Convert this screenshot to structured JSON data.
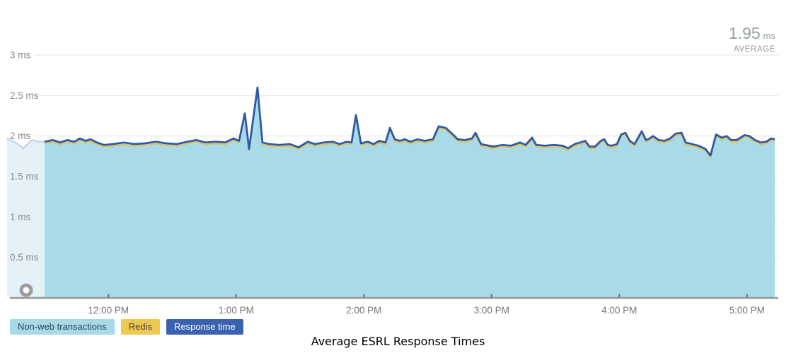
{
  "title": "Average ESRL Response Times",
  "summary": {
    "average_value": "1.95",
    "average_unit": "ms",
    "average_caption": "AVERAGE"
  },
  "legend": [
    {
      "label": "Non-web transactions",
      "bg": "#a7d9e6",
      "fg": "#31454f"
    },
    {
      "label": "Redis",
      "bg": "#edc951",
      "fg": "#4c4637"
    },
    {
      "label": "Response time",
      "bg": "#3b62b0",
      "fg": "#ffffff"
    }
  ],
  "chart_data": {
    "type": "area",
    "title": "Average ESRL Response Times",
    "xlabel": "",
    "ylabel": "",
    "unit": "ms",
    "average_ms": 1.95,
    "ylim": [
      0,
      3
    ],
    "x_range_hours": [
      11.206,
      17.25
    ],
    "grid": true,
    "legend_position": "bottom-left",
    "y_ticks": [
      {
        "v": 0.5,
        "label": "0.5 ms"
      },
      {
        "v": 1.0,
        "label": "1 ms"
      },
      {
        "v": 1.5,
        "label": "1.5 ms"
      },
      {
        "v": 2.0,
        "label": "2 ms"
      },
      {
        "v": 2.5,
        "label": "2.5 ms"
      },
      {
        "v": 3.0,
        "label": "3 ms"
      }
    ],
    "x_ticks": [
      {
        "hour": 12,
        "label": "12:00 PM"
      },
      {
        "hour": 13,
        "label": "1:00 PM"
      },
      {
        "hour": 14,
        "label": "2:00 PM"
      },
      {
        "hour": 15,
        "label": "3:00 PM"
      },
      {
        "hour": 16,
        "label": "4:00 PM"
      },
      {
        "hour": 17,
        "label": "5:00 PM"
      }
    ],
    "series": [
      {
        "name": "Non-web transactions",
        "type": "area",
        "color": "#a9dae8",
        "offset_ms": -0.02
      },
      {
        "name": "Redis",
        "type": "line",
        "color": "#e3bf4e",
        "offset_ms": -0.022
      },
      {
        "name": "Response time",
        "type": "line",
        "color": "#2a58ab",
        "offset_ms": 0
      }
    ],
    "previous_window": {
      "fill": "#e4f1f7",
      "stroke": "#c7d4e4",
      "samples": [
        [
          11.206,
          1.97
        ],
        [
          11.27,
          1.92
        ],
        [
          11.334,
          1.85
        ],
        [
          11.4,
          1.95
        ],
        [
          11.456,
          1.93
        ],
        [
          11.5,
          1.93
        ]
      ]
    },
    "samples_hour_value": [
      [
        11.5,
        1.93
      ],
      [
        11.566,
        1.95
      ],
      [
        11.622,
        1.92
      ],
      [
        11.677,
        1.95
      ],
      [
        11.733,
        1.93
      ],
      [
        11.777,
        1.97
      ],
      [
        11.821,
        1.94
      ],
      [
        11.86,
        1.96
      ],
      [
        11.91,
        1.92
      ],
      [
        11.965,
        1.89
      ],
      [
        12.037,
        1.9
      ],
      [
        12.12,
        1.92
      ],
      [
        12.204,
        1.9
      ],
      [
        12.287,
        1.91
      ],
      [
        12.37,
        1.93
      ],
      [
        12.453,
        1.91
      ],
      [
        12.536,
        1.9
      ],
      [
        12.619,
        1.93
      ],
      [
        12.691,
        1.95
      ],
      [
        12.758,
        1.92
      ],
      [
        12.841,
        1.93
      ],
      [
        12.913,
        1.92
      ],
      [
        12.979,
        1.97
      ],
      [
        13.023,
        1.94
      ],
      [
        13.068,
        2.28
      ],
      [
        13.101,
        1.84
      ],
      [
        13.167,
        2.6
      ],
      [
        13.206,
        1.92
      ],
      [
        13.256,
        1.9
      ],
      [
        13.339,
        1.89
      ],
      [
        13.422,
        1.9
      ],
      [
        13.489,
        1.86
      ],
      [
        13.561,
        1.93
      ],
      [
        13.616,
        1.9
      ],
      [
        13.688,
        1.92
      ],
      [
        13.755,
        1.93
      ],
      [
        13.81,
        1.9
      ],
      [
        13.866,
        1.93
      ],
      [
        13.904,
        1.92
      ],
      [
        13.938,
        2.26
      ],
      [
        13.977,
        1.91
      ],
      [
        14.032,
        1.93
      ],
      [
        14.076,
        1.9
      ],
      [
        14.12,
        1.94
      ],
      [
        14.17,
        1.92
      ],
      [
        14.204,
        2.1
      ],
      [
        14.242,
        1.96
      ],
      [
        14.281,
        1.94
      ],
      [
        14.32,
        1.96
      ],
      [
        14.364,
        1.93
      ],
      [
        14.42,
        1.96
      ],
      [
        14.475,
        1.94
      ],
      [
        14.541,
        1.96
      ],
      [
        14.586,
        2.12
      ],
      [
        14.641,
        2.1
      ],
      [
        14.697,
        2.02
      ],
      [
        14.735,
        1.96
      ],
      [
        14.791,
        1.95
      ],
      [
        14.846,
        1.97
      ],
      [
        14.874,
        2.04
      ],
      [
        14.918,
        1.9
      ],
      [
        15.012,
        1.87
      ],
      [
        15.084,
        1.89
      ],
      [
        15.151,
        1.88
      ],
      [
        15.223,
        1.92
      ],
      [
        15.267,
        1.89
      ],
      [
        15.317,
        1.98
      ],
      [
        15.35,
        1.89
      ],
      [
        15.417,
        1.88
      ],
      [
        15.489,
        1.89
      ],
      [
        15.555,
        1.88
      ],
      [
        15.6,
        1.85
      ],
      [
        15.65,
        1.9
      ],
      [
        15.694,
        1.92
      ],
      [
        15.733,
        1.94
      ],
      [
        15.766,
        1.87
      ],
      [
        15.81,
        1.87
      ],
      [
        15.855,
        1.94
      ],
      [
        15.882,
        1.96
      ],
      [
        15.91,
        1.89
      ],
      [
        15.938,
        1.88
      ],
      [
        15.982,
        1.9
      ],
      [
        16.015,
        2.02
      ],
      [
        16.048,
        2.04
      ],
      [
        16.082,
        1.94
      ],
      [
        16.12,
        1.9
      ],
      [
        16.176,
        2.06
      ],
      [
        16.209,
        1.95
      ],
      [
        16.237,
        1.97
      ],
      [
        16.265,
        2.0
      ],
      [
        16.309,
        1.95
      ],
      [
        16.354,
        1.94
      ],
      [
        16.398,
        1.97
      ],
      [
        16.442,
        2.03
      ],
      [
        16.487,
        2.04
      ],
      [
        16.52,
        1.92
      ],
      [
        16.57,
        1.9
      ],
      [
        16.62,
        1.88
      ],
      [
        16.675,
        1.84
      ],
      [
        16.714,
        1.76
      ],
      [
        16.758,
        2.02
      ],
      [
        16.803,
        1.98
      ],
      [
        16.841,
        2.0
      ],
      [
        16.875,
        1.95
      ],
      [
        16.919,
        1.95
      ],
      [
        16.98,
        2.01
      ],
      [
        17.019,
        2.0
      ],
      [
        17.063,
        1.95
      ],
      [
        17.107,
        1.92
      ],
      [
        17.152,
        1.93
      ],
      [
        17.19,
        1.97
      ],
      [
        17.218,
        1.96
      ]
    ]
  }
}
